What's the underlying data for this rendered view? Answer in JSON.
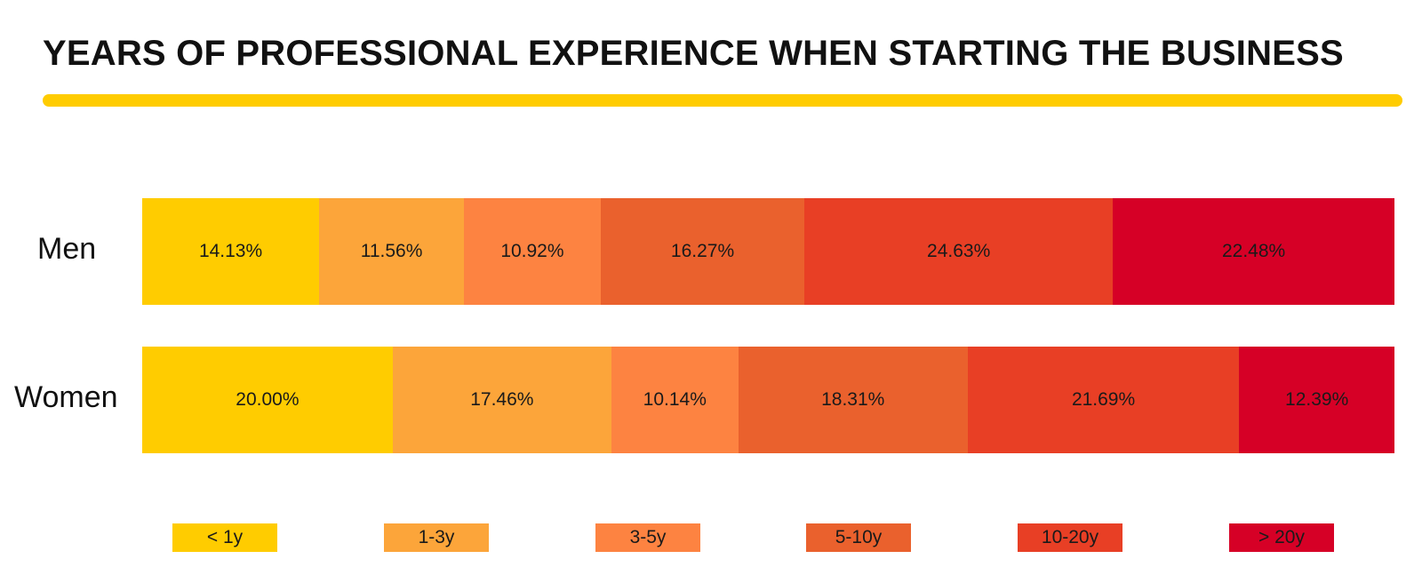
{
  "chart_data": {
    "type": "bar",
    "orientation": "horizontal",
    "stacked": true,
    "title": "YEARS OF PROFESSIONAL EXPERIENCE WHEN STARTING THE BUSINESS",
    "categories": [
      "Men",
      "Women"
    ],
    "series": [
      {
        "name": "< 1y",
        "color": "#FFCC00",
        "values": [
          14.13,
          20.0
        ],
        "labels": [
          "14.13%",
          "20.00%"
        ]
      },
      {
        "name": "1-3y",
        "color": "#FCA53A",
        "values": [
          11.56,
          17.46
        ],
        "labels": [
          "11.56%",
          "17.46%"
        ]
      },
      {
        "name": "3-5y",
        "color": "#FD8341",
        "values": [
          10.92,
          10.14
        ],
        "labels": [
          "10.92%",
          "10.14%"
        ]
      },
      {
        "name": "5-10y",
        "color": "#EA612D",
        "values": [
          16.27,
          18.31
        ],
        "labels": [
          "16.27%",
          "18.31%"
        ]
      },
      {
        "name": "10-20y",
        "color": "#E83F25",
        "values": [
          24.63,
          21.69
        ],
        "labels": [
          "24.63%",
          "21.69%"
        ]
      },
      {
        "name": "> 20y",
        "color": "#D60026",
        "values": [
          22.48,
          12.39
        ],
        "labels": [
          "22.48%",
          "12.39%"
        ]
      }
    ],
    "legend_position": "bottom",
    "grid": false,
    "accent_color": "#FFCC00"
  }
}
